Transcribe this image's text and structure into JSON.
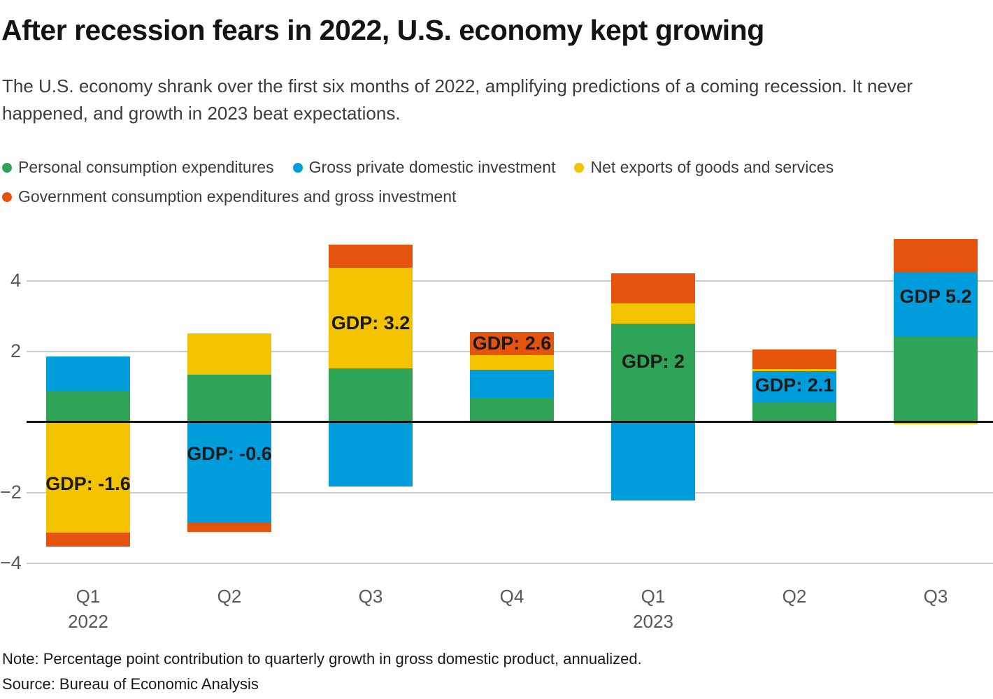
{
  "title": "After recession fears in 2022, U.S. economy kept growing",
  "subtitle": "The U.S. economy shrank over the first six months of 2022, amplifying predictions of a coming recession. It never happened, and growth in 2023 beat expectations.",
  "colors": {
    "pce_green": "#2FA356",
    "investment_blue": "#009DDC",
    "net_exports_yellow": "#F3C300",
    "government_orange": "#E4540F",
    "gridline_gray": "#CBCBCB",
    "zero_line_black": "#151515",
    "axis_text_gray": "#595959"
  },
  "legend": [
    {
      "label": "Personal consumption expenditures",
      "color": "#2FA356",
      "key": "pce",
      "row": 1
    },
    {
      "label": "Gross private domestic investment",
      "color": "#009DDC",
      "key": "investment",
      "row": 1
    },
    {
      "label": "Net exports of goods and services",
      "color": "#F3C300",
      "key": "net-exports",
      "row": 1
    },
    {
      "label": "Government consumption expenditures and gross investment",
      "color": "#E4540F",
      "key": "government",
      "row": 2
    }
  ],
  "chart_data": {
    "type": "bar",
    "variant": "stacked",
    "title": "Percentage point contribution to quarterly GDP growth, annualized",
    "categories": [
      "Q1",
      "Q2",
      "Q3",
      "Q4",
      "Q1",
      "Q2",
      "Q3"
    ],
    "year_labels": [
      {
        "index": 0,
        "label": "2022"
      },
      {
        "index": 4,
        "label": "2023"
      }
    ],
    "series": [
      {
        "name": "Personal consumption expenditures",
        "key": "pce",
        "color": "#2FA356",
        "values": [
          0.88,
          1.35,
          1.52,
          0.7,
          2.79,
          0.55,
          2.42
        ]
      },
      {
        "name": "Gross private domestic investment",
        "key": "investment",
        "color": "#009DDC",
        "values": [
          0.99,
          -2.83,
          -1.83,
          0.79,
          -2.22,
          0.9,
          1.84
        ]
      },
      {
        "name": "Net exports of goods and services",
        "key": "net-exports",
        "color": "#F3C300",
        "values": [
          -3.13,
          1.16,
          2.86,
          0.42,
          0.58,
          0.05,
          -0.06
        ]
      },
      {
        "name": "Government consumption expenditures and gross investment",
        "key": "government",
        "color": "#E4540F",
        "values": [
          -0.4,
          -0.29,
          0.65,
          0.65,
          0.85,
          0.57,
          0.93
        ]
      }
    ],
    "gdp_totals": [
      -1.6,
      -0.6,
      3.2,
      2.6,
      2.0,
      2.1,
      5.2
    ],
    "gdp_labels": [
      "GDP: -1.6",
      "GDP: -0.6",
      "GDP: 3.2",
      "GDP: 2.6",
      "GDP: 2",
      "GDP: 2.1",
      "GDP 5.2"
    ],
    "gdp_label_pos": [
      -1.77,
      -0.91,
      2.8,
      2.22,
      1.71,
      1.03,
      3.55
    ],
    "y_ticks": [
      4,
      2,
      -2,
      -4
    ],
    "ylim": [
      -4.6,
      5.4
    ],
    "grid": true,
    "legend_position": "top",
    "xlabel": "",
    "ylabel": ""
  },
  "note": "Note: Percentage point contribution to quarterly growth in gross domestic product, annualized.",
  "source": "Source: Bureau of Economic Analysis"
}
